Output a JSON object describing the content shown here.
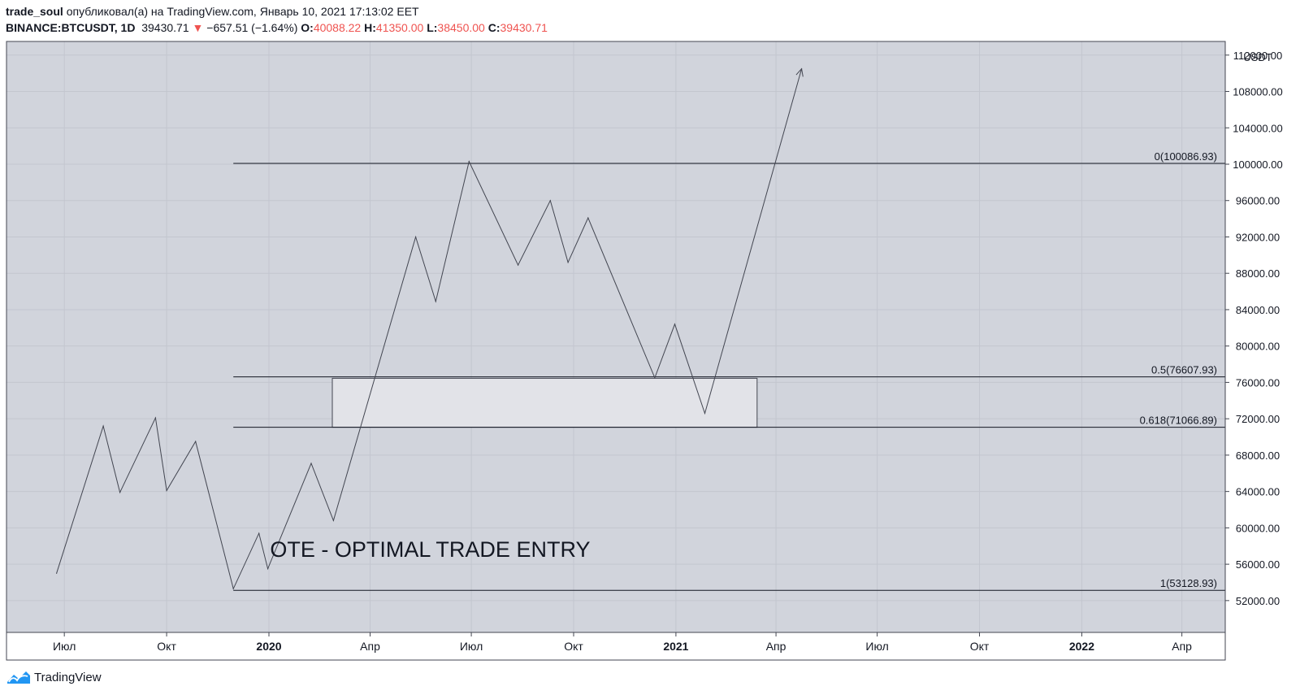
{
  "header": {
    "author": "trade_soul",
    "published_text": "опубликовал(а) на TradingView.com, Январь 10, 2021 17:13:02 EET",
    "symbol": "BINANCE:BTCUSDT, 1D",
    "last_price": "39430.71",
    "change_arrow": "▼",
    "change": "−657.51 (−1.64%)",
    "open_label": "O:",
    "open": "40088.22",
    "high_label": "H:",
    "high": "41350.00",
    "low_label": "L:",
    "low": "38450.00",
    "close_label": "C:",
    "close": "39430.71"
  },
  "footer": {
    "brand": "TradingView"
  },
  "colors": {
    "plot_bg": "#d1d4dc",
    "line": "#434651",
    "accent_red": "#ef5350",
    "brand_blue": "#2196f3",
    "zone_fill": "#e2e3e8"
  },
  "chart_data": {
    "type": "line",
    "currency_label": "USDT",
    "y_ticks": [
      "52000.00",
      "56000.00",
      "60000.00",
      "64000.00",
      "68000.00",
      "72000.00",
      "76000.00",
      "80000.00",
      "84000.00",
      "88000.00",
      "92000.00",
      "96000.00",
      "100000.00",
      "104000.00",
      "108000.00"
    ],
    "y_top_tick": "112000.00",
    "ylim": [
      48500,
      113500
    ],
    "xlim": [
      "2019-05-10",
      "2022-05-10"
    ],
    "x_ticks": [
      {
        "label": "Июл",
        "date": "2019-07-01",
        "bold": false
      },
      {
        "label": "Окт",
        "date": "2019-10-01",
        "bold": false
      },
      {
        "label": "2020",
        "date": "2020-01-01",
        "bold": true
      },
      {
        "label": "Апр",
        "date": "2020-04-01",
        "bold": false
      },
      {
        "label": "Июл",
        "date": "2020-07-01",
        "bold": false
      },
      {
        "label": "Окт",
        "date": "2020-10-01",
        "bold": false
      },
      {
        "label": "2021",
        "date": "2021-01-01",
        "bold": true
      },
      {
        "label": "Апр",
        "date": "2021-04-01",
        "bold": false
      },
      {
        "label": "Июл",
        "date": "2021-07-01",
        "bold": false
      },
      {
        "label": "Окт",
        "date": "2021-10-01",
        "bold": false
      },
      {
        "label": "2022",
        "date": "2022-01-01",
        "bold": true
      },
      {
        "label": "Апр",
        "date": "2022-04-01",
        "bold": false
      }
    ],
    "series": [
      {
        "points": [
          [
            "2019-06-24",
            55000
          ],
          [
            "2019-08-05",
            71200
          ],
          [
            "2019-08-20",
            63900
          ],
          [
            "2019-09-21",
            72100
          ],
          [
            "2019-10-01",
            64100
          ],
          [
            "2019-10-27",
            69500
          ],
          [
            "2019-11-30",
            53300
          ],
          [
            "2019-12-23",
            59400
          ],
          [
            "2019-12-31",
            55500
          ],
          [
            "2020-02-08",
            67100
          ],
          [
            "2020-02-28",
            60800
          ],
          [
            "2020-05-12",
            92000
          ],
          [
            "2020-05-30",
            84900
          ],
          [
            "2020-06-29",
            100300
          ],
          [
            "2020-08-12",
            88900
          ],
          [
            "2020-09-10",
            96000
          ],
          [
            "2020-09-26",
            89200
          ],
          [
            "2020-10-14",
            94100
          ],
          [
            "2020-12-13",
            76500
          ],
          [
            "2020-12-31",
            82400
          ],
          [
            "2021-01-27",
            72600
          ],
          [
            "2021-04-24",
            110500
          ]
        ]
      }
    ],
    "fib_levels": [
      {
        "label": "0(100086.93)",
        "value": 100086.93
      },
      {
        "label": "0.5(76607.93)",
        "value": 76607.93
      },
      {
        "label": "0.618(71066.89)",
        "value": 71066.89
      },
      {
        "label": "1(53128.93)",
        "value": 53128.93
      }
    ],
    "fib_start": "2019-11-30",
    "zone": {
      "x_start": "2020-02-27",
      "x_end": "2021-03-15",
      "y_low": 71066.89,
      "y_high": 76450
    },
    "annotation": "OTE - OPTIMAL TRADE ENTRY",
    "annotation_anchor": {
      "x": "2020-05-25",
      "y": 56800
    },
    "grid": true
  }
}
